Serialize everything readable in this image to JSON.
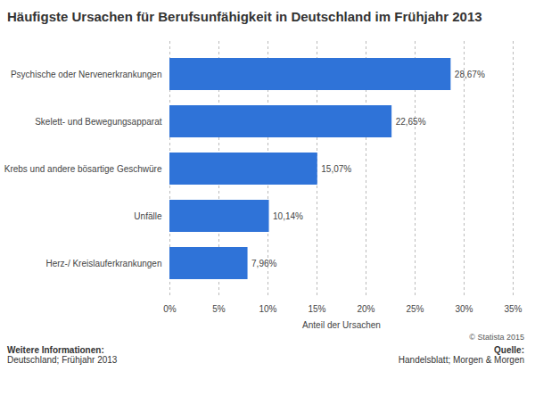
{
  "chart_data": {
    "type": "bar",
    "orientation": "horizontal",
    "title": "Häufigste Ursachen für Berufsunfähigkeit in Deutschland im Frühjahr 2013",
    "categories": [
      "Psychische oder Nervenerkrankungen",
      "Skelett- und Bewegungsapparat",
      "Krebs und andere bösartige Geschwüre",
      "Unfälle",
      "Herz-/ Kreislauferkrankungen"
    ],
    "values": [
      28.67,
      22.65,
      15.07,
      10.14,
      7.96
    ],
    "value_labels": [
      "28,67%",
      "22,65%",
      "15,07%",
      "10,14%",
      "7,96%"
    ],
    "data_labels": true,
    "color": "#2f73d8",
    "x_label": "Anteil der Ursachen",
    "xlim": [
      0,
      35
    ],
    "xticks": [
      {
        "value": 0,
        "label": "0%"
      },
      {
        "value": 5,
        "label": "5%"
      },
      {
        "value": 10,
        "label": "10%"
      },
      {
        "value": 15,
        "label": "15%"
      },
      {
        "value": 20,
        "label": "20%"
      },
      {
        "value": 25,
        "label": "25%"
      },
      {
        "value": 30,
        "label": "30%"
      },
      {
        "value": 35,
        "label": "35%"
      }
    ],
    "grid": true,
    "credit": "© Statista 2015",
    "info_label": "Weitere Informationen:",
    "info_text": "Deutschland; Frühjahr 2013",
    "source_label": "Quelle:",
    "source_text": "Handelsblatt; Morgen & Morgen"
  }
}
